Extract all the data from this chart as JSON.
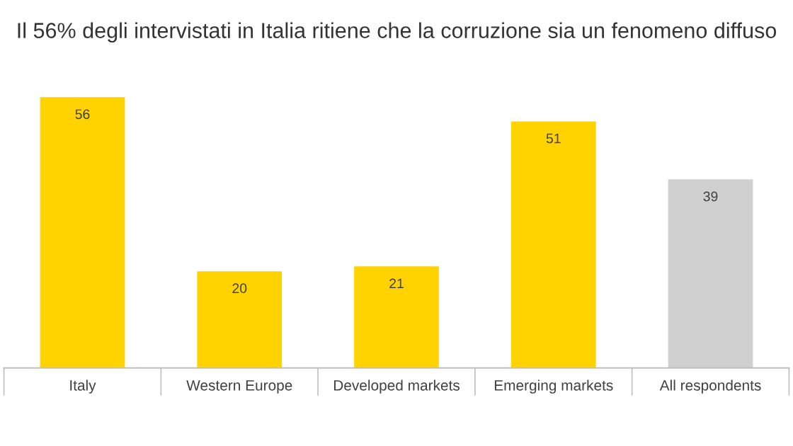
{
  "chart_data": {
    "type": "bar",
    "title": "Il 56% degli intervistati in Italia ritiene che la corruzione sia un fenomeno diffuso",
    "categories": [
      "Italy",
      "Western Europe",
      "Developed markets",
      "Emerging markets",
      "All respondents"
    ],
    "values": [
      56,
      20,
      21,
      51,
      39
    ],
    "colors": [
      "#ffd200",
      "#ffd200",
      "#ffd200",
      "#ffd200",
      "#d0d0d0"
    ],
    "data_labels": true,
    "grid": false,
    "legend": false
  }
}
